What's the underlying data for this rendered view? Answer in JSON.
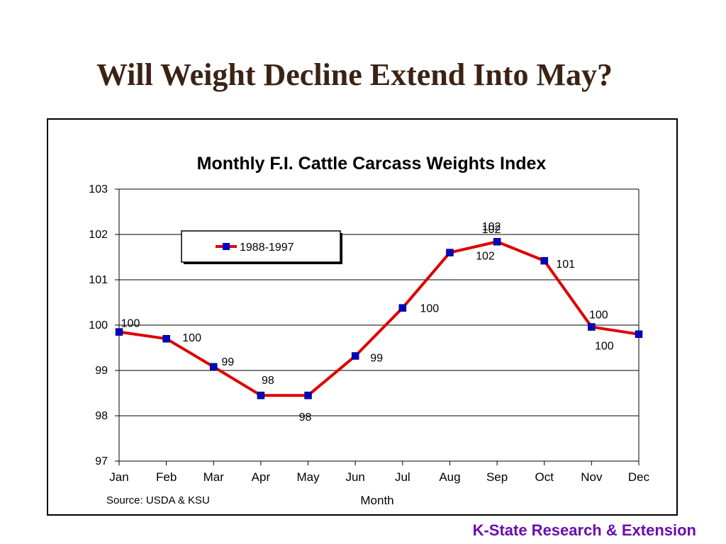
{
  "slide": {
    "title": "Will Weight Decline Extend Into May?",
    "footer": "K-State Research & Extension"
  },
  "colors": {
    "title": "#3b2314",
    "footer": "#6a0dad",
    "line": "#dd0000",
    "marker": "#0000cc"
  },
  "chart_data": {
    "type": "line",
    "title": "Monthly F.I. Cattle Carcass Weights Index",
    "xlabel": "Month",
    "ylabel": "",
    "source": "Source: USDA & KSU",
    "categories": [
      "Jan",
      "Feb",
      "Mar",
      "Apr",
      "May",
      "Jun",
      "Jul",
      "Aug",
      "Sep",
      "Oct",
      "Nov",
      "Dec"
    ],
    "ylim": [
      97,
      103
    ],
    "yticks": [
      "97",
      "98",
      "99",
      "100",
      "101",
      "102",
      "103"
    ],
    "grid": true,
    "legend_position": "top-left",
    "series": [
      {
        "name": "1988-1997",
        "values": [
          99.85,
          99.7,
          99.08,
          98.45,
          98.45,
          99.32,
          100.38,
          101.6,
          101.84,
          101.42,
          99.96,
          99.8
        ],
        "data_labels": [
          "100",
          "100",
          "99",
          "98",
          "98",
          "99",
          "100",
          "102",
          "102",
          "101",
          "100",
          ""
        ]
      }
    ],
    "extra_labels": [
      "102",
      "100"
    ]
  }
}
